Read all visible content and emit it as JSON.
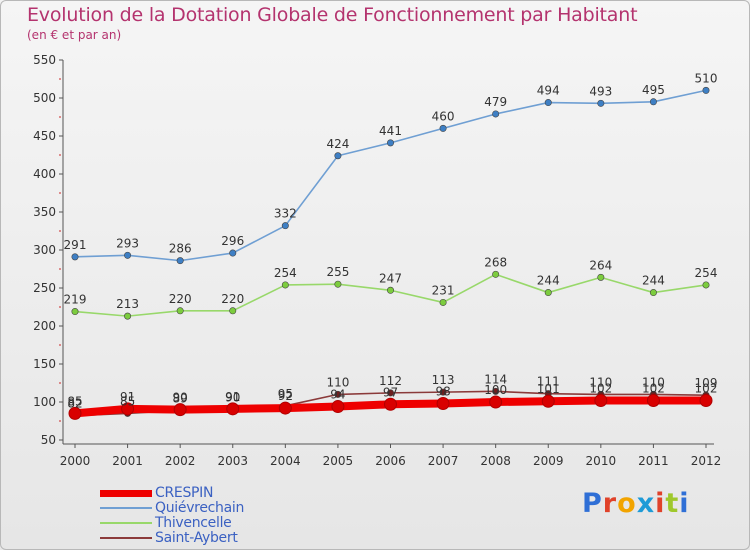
{
  "header": {
    "title": "Evolution de la Dotation Globale de Fonctionnement par Habitant",
    "subtitle": "(en € et par an)"
  },
  "logo": {
    "text": "Proxiti",
    "letter_colors": [
      "#2f6fd6",
      "#e0422a",
      "#f2a400",
      "#1e9bd7",
      "#e0422a",
      "#9fc82c",
      "#2f6fd6"
    ]
  },
  "chart_data": {
    "type": "line",
    "title": "Evolution de la Dotation Globale de Fonctionnement par Habitant",
    "subtitle": "(en € et par an)",
    "x": [
      "2000",
      "2001",
      "2002",
      "2003",
      "2004",
      "2005",
      "2006",
      "2007",
      "2008",
      "2009",
      "2010",
      "2011",
      "2012"
    ],
    "ylim": [
      50,
      550
    ],
    "yticks": [
      50,
      100,
      150,
      200,
      250,
      300,
      350,
      400,
      450,
      500,
      550
    ],
    "grid": false,
    "legend_position": "bottom-left",
    "series": [
      {
        "name": "CRESPIN",
        "color": "#ee0000",
        "values": [
          85,
          91,
          90,
          91,
          92,
          94,
          97,
          98,
          100,
          101,
          102,
          102,
          102
        ]
      },
      {
        "name": "Quiévrechain",
        "color": "#6f9fd3",
        "values": [
          291,
          293,
          286,
          296,
          332,
          424,
          441,
          460,
          479,
          494,
          493,
          495,
          510
        ]
      },
      {
        "name": "Thivencelle",
        "color": "#98d86a",
        "values": [
          219,
          213,
          220,
          220,
          254,
          255,
          247,
          231,
          268,
          244,
          264,
          244,
          254
        ]
      },
      {
        "name": "Saint-Aybert",
        "color": "#8b3a3a",
        "values": [
          82,
          85,
          89,
          90,
          95,
          110,
          112,
          113,
          114,
          111,
          110,
          110,
          109
        ]
      }
    ]
  }
}
